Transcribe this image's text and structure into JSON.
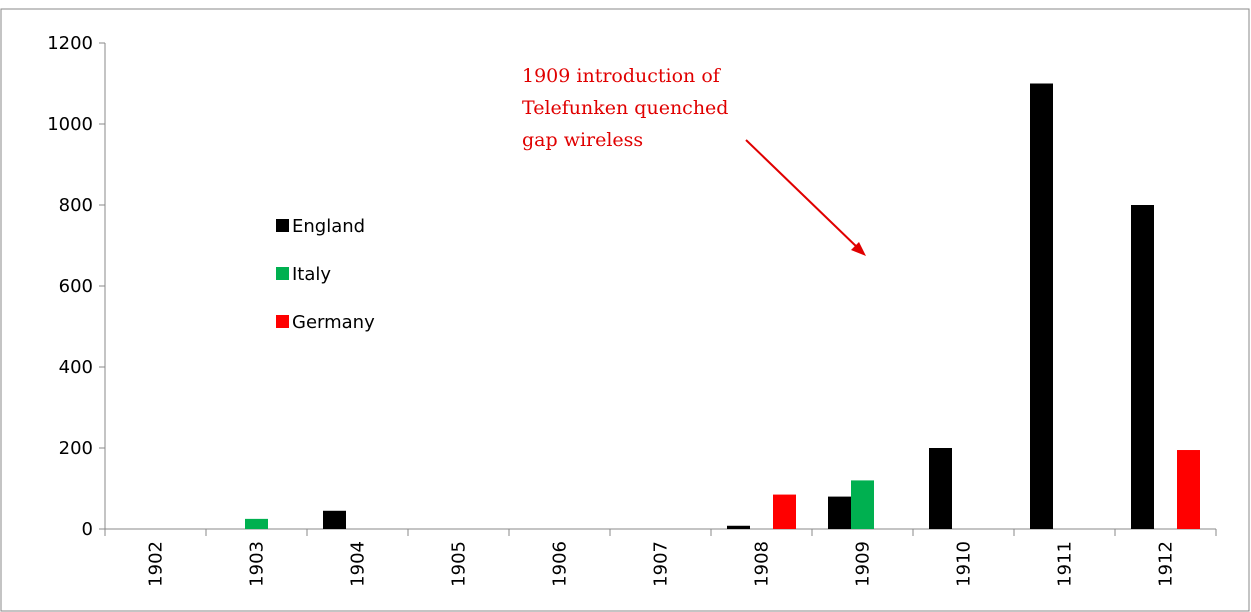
{
  "chart_data": {
    "type": "bar",
    "categories": [
      "1902",
      "1903",
      "1904",
      "1905",
      "1906",
      "1907",
      "1908",
      "1909",
      "1910",
      "1911",
      "1912"
    ],
    "series": [
      {
        "name": "England",
        "color": "#000000",
        "values": [
          0,
          0,
          45,
          0,
          0,
          0,
          8,
          80,
          200,
          1100,
          800
        ]
      },
      {
        "name": "Italy",
        "color": "#00b050",
        "values": [
          0,
          25,
          0,
          0,
          0,
          0,
          0,
          120,
          0,
          0,
          0
        ]
      },
      {
        "name": "Germany",
        "color": "#ff0000",
        "values": [
          0,
          0,
          0,
          0,
          0,
          0,
          85,
          0,
          0,
          0,
          195
        ]
      }
    ],
    "ylim": [
      0,
      1200
    ],
    "yticks": [
      0,
      200,
      400,
      600,
      800,
      1000,
      1200
    ],
    "annotation": [
      "1909 introduction of",
      "Telefunken quenched",
      "gap wireless"
    ],
    "legend": "left",
    "grid": false
  }
}
